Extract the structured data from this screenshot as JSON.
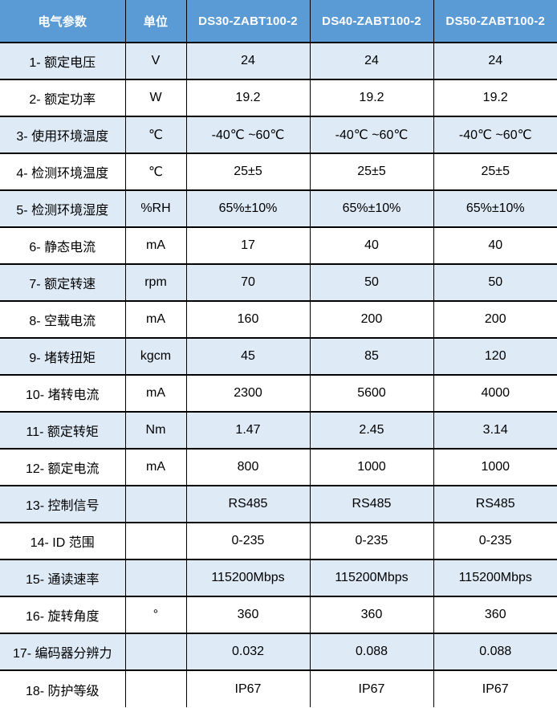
{
  "table": {
    "headers": [
      "电气参数",
      "单位",
      "DS30-ZABT100-2",
      "DS40-ZABT100-2",
      "DS50-ZABT100-2"
    ],
    "rows": [
      {
        "label": "1- 额定电压",
        "unit": "V",
        "values": [
          "24",
          "24",
          "24"
        ]
      },
      {
        "label": "2- 额定功率",
        "unit": "W",
        "values": [
          "19.2",
          "19.2",
          "19.2"
        ]
      },
      {
        "label": "3- 使用环境温度",
        "unit": "℃",
        "values": [
          "-40℃ ~60℃",
          "-40℃ ~60℃",
          "-40℃ ~60℃"
        ]
      },
      {
        "label": "4- 检测环境温度",
        "unit": "℃",
        "values": [
          "25±5",
          "25±5",
          "25±5"
        ]
      },
      {
        "label": "5- 检测环境湿度",
        "unit": "%RH",
        "values": [
          "65%±10%",
          "65%±10%",
          "65%±10%"
        ]
      },
      {
        "label": "6- 静态电流",
        "unit": "mA",
        "values": [
          "17",
          "40",
          "40"
        ]
      },
      {
        "label": "7- 额定转速",
        "unit": "rpm",
        "values": [
          "70",
          "50",
          "50"
        ]
      },
      {
        "label": "8- 空载电流",
        "unit": "mA",
        "values": [
          "160",
          "200",
          "200"
        ]
      },
      {
        "label": "9- 堵转扭矩",
        "unit": "kgcm",
        "values": [
          "45",
          "85",
          "120"
        ]
      },
      {
        "label": "10- 堵转电流",
        "unit": "mA",
        "values": [
          "2300",
          "5600",
          "4000"
        ]
      },
      {
        "label": "11- 额定转矩",
        "unit": "Nm",
        "values": [
          "1.47",
          "2.45",
          "3.14"
        ]
      },
      {
        "label": "12- 额定电流",
        "unit": "mA",
        "values": [
          "800",
          "1000",
          "1000"
        ]
      },
      {
        "label": "13- 控制信号",
        "unit": "",
        "values": [
          "RS485",
          "RS485",
          "RS485"
        ]
      },
      {
        "label": "14- ID 范围",
        "unit": "",
        "values": [
          "0-235",
          "0-235",
          "0-235"
        ]
      },
      {
        "label": "15- 通读速率",
        "unit": "",
        "values": [
          "115200Mbps",
          "115200Mbps",
          "115200Mbps"
        ]
      },
      {
        "label": "16- 旋转角度",
        "unit": "°",
        "values": [
          "360",
          "360",
          "360"
        ]
      },
      {
        "label": "17- 编码器分辨力",
        "unit": "",
        "values": [
          "0.032",
          "0.088",
          "0.088"
        ]
      },
      {
        "label": "18- 防护等级",
        "unit": "",
        "values": [
          "IP67",
          "IP67",
          "IP67"
        ]
      }
    ]
  },
  "colors": {
    "header_bg": "#5b9bd5",
    "alt_row_bg": "#deeaf6",
    "row_bg": "#ffffff",
    "border": "#000000",
    "header_text": "#ffffff",
    "body_text": "#000000"
  }
}
